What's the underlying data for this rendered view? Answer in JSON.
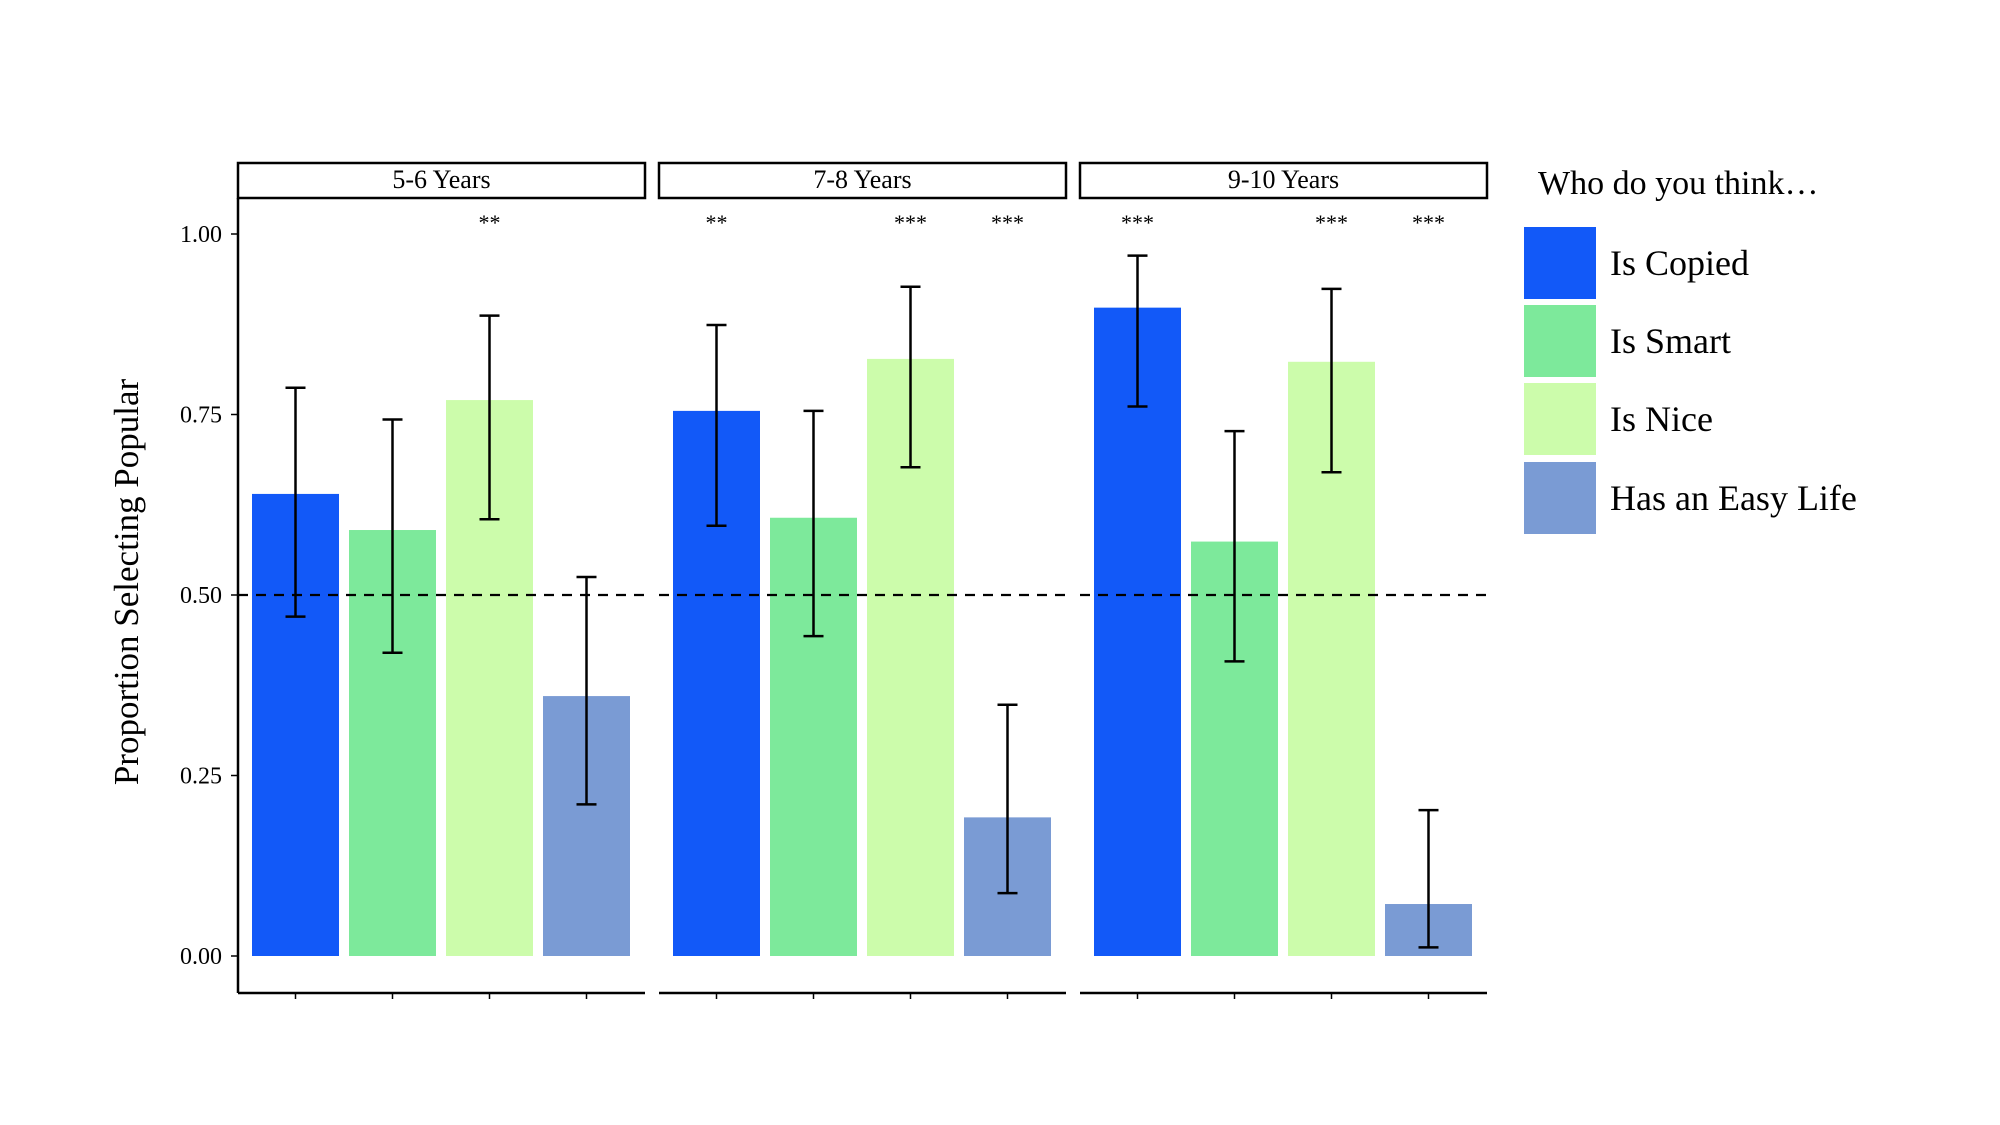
{
  "chart_data": {
    "type": "bar",
    "title": "",
    "xlabel": "",
    "ylabel": "Proportion Selecting Popular",
    "ylim": [
      0,
      1.05
    ],
    "yticks": [
      "0.00",
      "0.25",
      "0.50",
      "0.75",
      "1.00"
    ],
    "ytick_values": [
      0,
      0.25,
      0.5,
      0.75,
      1.0
    ],
    "reference_line": 0.5,
    "grid": false,
    "legend": {
      "title": "Who do you think…",
      "placement": "right",
      "entries": [
        "Is Copied",
        "Is Smart",
        "Is Nice",
        "Has an Easy Life"
      ]
    },
    "colors": [
      "#1259F8",
      "#7DE99B",
      "#CCFCAB",
      "#7A9BD4"
    ],
    "panels": [
      {
        "label": "5-6 Years",
        "values": [
          0.64,
          0.59,
          0.77,
          0.36
        ],
        "ci_low": [
          0.47,
          0.42,
          0.605,
          0.21
        ],
        "ci_high": [
          0.787,
          0.743,
          0.887,
          0.525
        ],
        "significance": [
          "",
          "",
          "**",
          ""
        ]
      },
      {
        "label": "7-8 Years",
        "values": [
          0.755,
          0.607,
          0.827,
          0.192
        ],
        "ci_low": [
          0.596,
          0.443,
          0.677,
          0.087
        ],
        "ci_high": [
          0.874,
          0.755,
          0.927,
          0.348
        ],
        "significance": [
          "**",
          "",
          "***",
          "***"
        ]
      },
      {
        "label": "9-10 Years",
        "values": [
          0.898,
          0.574,
          0.823,
          0.072
        ],
        "ci_low": [
          0.761,
          0.408,
          0.67,
          0.012
        ],
        "ci_high": [
          0.97,
          0.727,
          0.924,
          0.202
        ],
        "significance": [
          "***",
          "",
          "***",
          "***"
        ]
      }
    ]
  }
}
